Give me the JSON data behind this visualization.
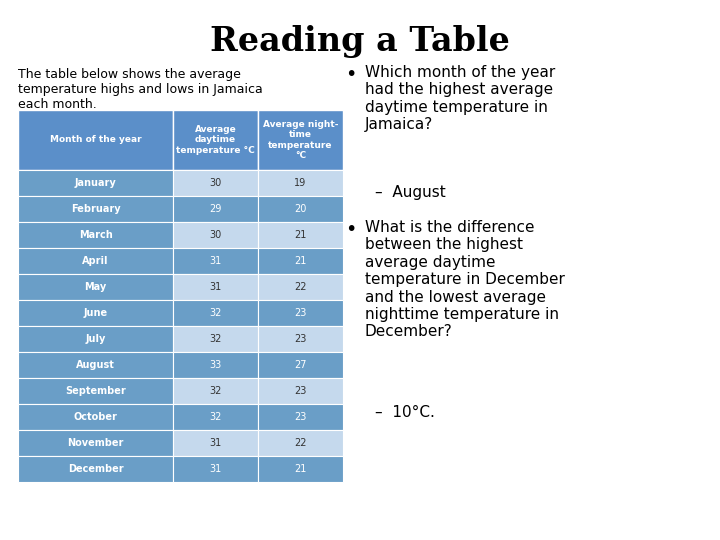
{
  "title": "Reading a Table",
  "intro_text": "The table below shows the average\ntemperature highs and lows in Jamaica\neach month.",
  "col_headers": [
    "Month of the year",
    "Average\ndaytime\ntemperature °C",
    "Average night-\ntime\ntemperature\n°C"
  ],
  "months": [
    "January",
    "February",
    "March",
    "April",
    "May",
    "June",
    "July",
    "August",
    "September",
    "October",
    "November",
    "December"
  ],
  "daytime": [
    30,
    29,
    30,
    31,
    31,
    32,
    32,
    33,
    32,
    32,
    31,
    31
  ],
  "nighttime": [
    19,
    20,
    21,
    21,
    22,
    23,
    23,
    27,
    23,
    23,
    22,
    21
  ],
  "header_bg": "#5b8fc9",
  "row_bg_dark": "#6a9ec7",
  "row_bg_light": "#c5d9ed",
  "header_text_color": "#ffffff",
  "data_text_color": "#333333",
  "bullet_q1_lines": "Which month of the year\nhad the highest average\ndaytime temperature in\nJamaica?",
  "bullet_a1": "–  August",
  "bullet_q2_lines": "What is the difference\nbetween the highest\naverage daytime\ntemperature in December\nand the lowest average\nnighttime temperature in\nDecember?",
  "bullet_a2": "–  10°C.",
  "bg_color": "#ffffff"
}
